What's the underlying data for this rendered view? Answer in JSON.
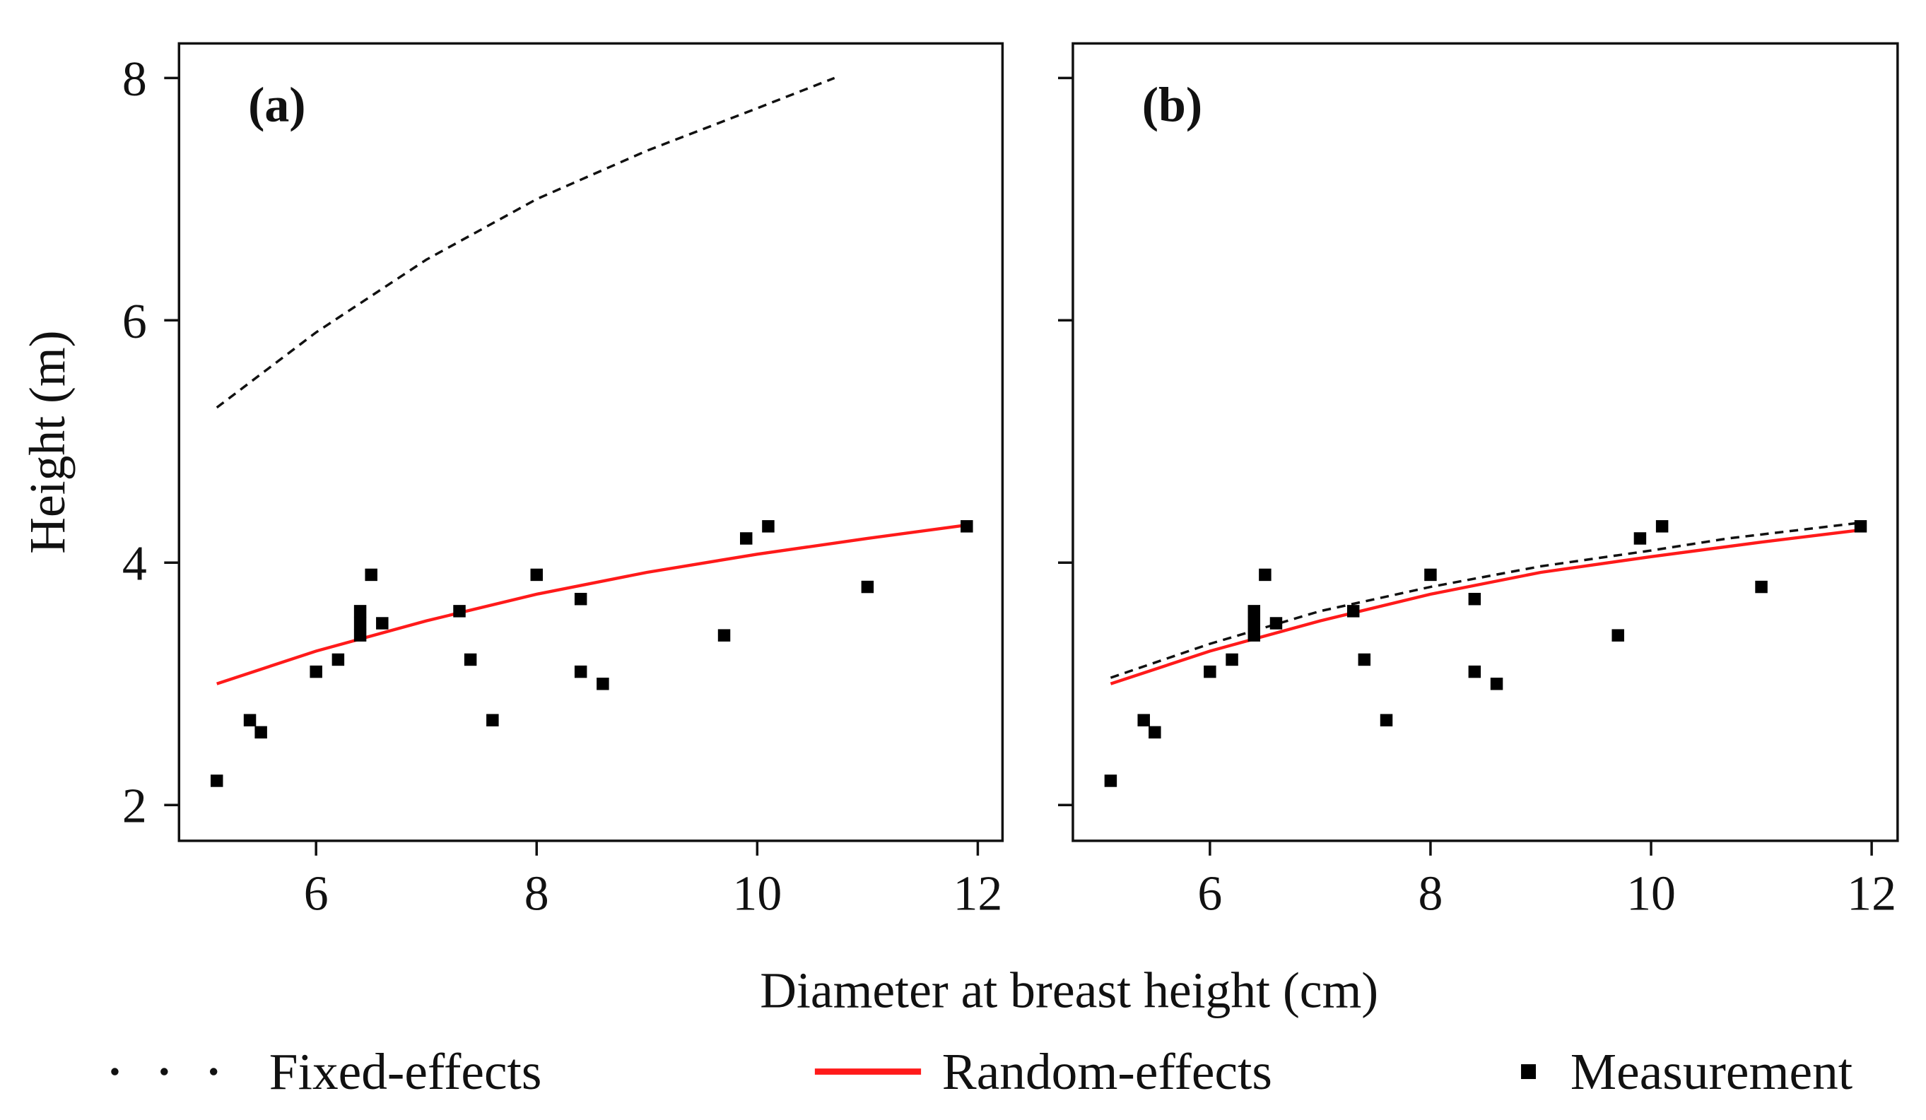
{
  "colors": {
    "fixed": "#111111",
    "random": "#ff1a1a",
    "measurement": "#000000",
    "frame": "#111111"
  },
  "chart_data": [
    {
      "type": "scatter",
      "panel_label": "(a)",
      "xlabel": "Diameter at breast height (cm)",
      "ylabel": "Height (m)",
      "xlim": [
        5,
        12.2
      ],
      "ylim": [
        1.7,
        8.3
      ],
      "xticks": [
        6,
        8,
        10,
        12
      ],
      "yticks": [
        2,
        4,
        6,
        8
      ],
      "grid": false,
      "measurement": {
        "x": [
          5.1,
          5.4,
          5.5,
          6.0,
          6.2,
          6.4,
          6.4,
          6.4,
          6.5,
          6.6,
          7.3,
          7.4,
          7.6,
          8.0,
          8.4,
          8.4,
          8.6,
          9.7,
          9.9,
          10.1,
          11.0,
          11.9
        ],
        "y": [
          2.2,
          2.7,
          2.6,
          3.1,
          3.2,
          3.6,
          3.5,
          3.4,
          3.9,
          3.5,
          3.6,
          3.2,
          2.7,
          3.9,
          3.7,
          3.1,
          3.0,
          3.4,
          4.2,
          4.3,
          3.8,
          4.3
        ]
      },
      "fixed_effects": {
        "x": [
          5.1,
          6,
          7,
          8,
          9,
          10,
          10.7
        ],
        "y": [
          5.28,
          5.9,
          6.5,
          7.0,
          7.4,
          7.75,
          8.0
        ]
      },
      "random_effects": {
        "x": [
          5.1,
          6,
          7,
          8,
          9,
          10,
          11,
          11.9
        ],
        "y": [
          3.0,
          3.27,
          3.52,
          3.74,
          3.92,
          4.07,
          4.2,
          4.31
        ]
      }
    },
    {
      "type": "scatter",
      "panel_label": "(b)",
      "xlim": [
        5,
        12.2
      ],
      "ylim": [
        1.7,
        8.3
      ],
      "xticks": [
        6,
        8,
        10,
        12
      ],
      "yticks": [
        2,
        4,
        6,
        8
      ],
      "grid": false,
      "measurement": {
        "x": [
          5.1,
          5.4,
          5.5,
          6.0,
          6.2,
          6.4,
          6.4,
          6.4,
          6.5,
          6.6,
          7.3,
          7.4,
          7.6,
          8.0,
          8.4,
          8.4,
          8.6,
          9.7,
          9.9,
          10.1,
          11.0,
          11.9
        ],
        "y": [
          2.2,
          2.7,
          2.6,
          3.1,
          3.2,
          3.6,
          3.5,
          3.4,
          3.9,
          3.5,
          3.6,
          3.2,
          2.7,
          3.9,
          3.7,
          3.1,
          3.0,
          3.4,
          4.2,
          4.3,
          3.8,
          4.3
        ]
      },
      "fixed_effects": {
        "x": [
          5.1,
          6,
          7,
          8,
          9,
          10,
          10.7,
          11.9
        ],
        "y": [
          3.05,
          3.33,
          3.6,
          3.8,
          3.97,
          4.1,
          4.2,
          4.33
        ]
      },
      "random_effects": {
        "x": [
          5.1,
          6,
          7,
          8,
          9,
          10,
          11,
          11.9
        ],
        "y": [
          3.0,
          3.27,
          3.52,
          3.74,
          3.92,
          4.05,
          4.17,
          4.27
        ]
      }
    }
  ],
  "legend": {
    "placement": "bottom",
    "fixed": "Fixed-effects",
    "random": "Random-effects",
    "measurement": "Measurement"
  }
}
